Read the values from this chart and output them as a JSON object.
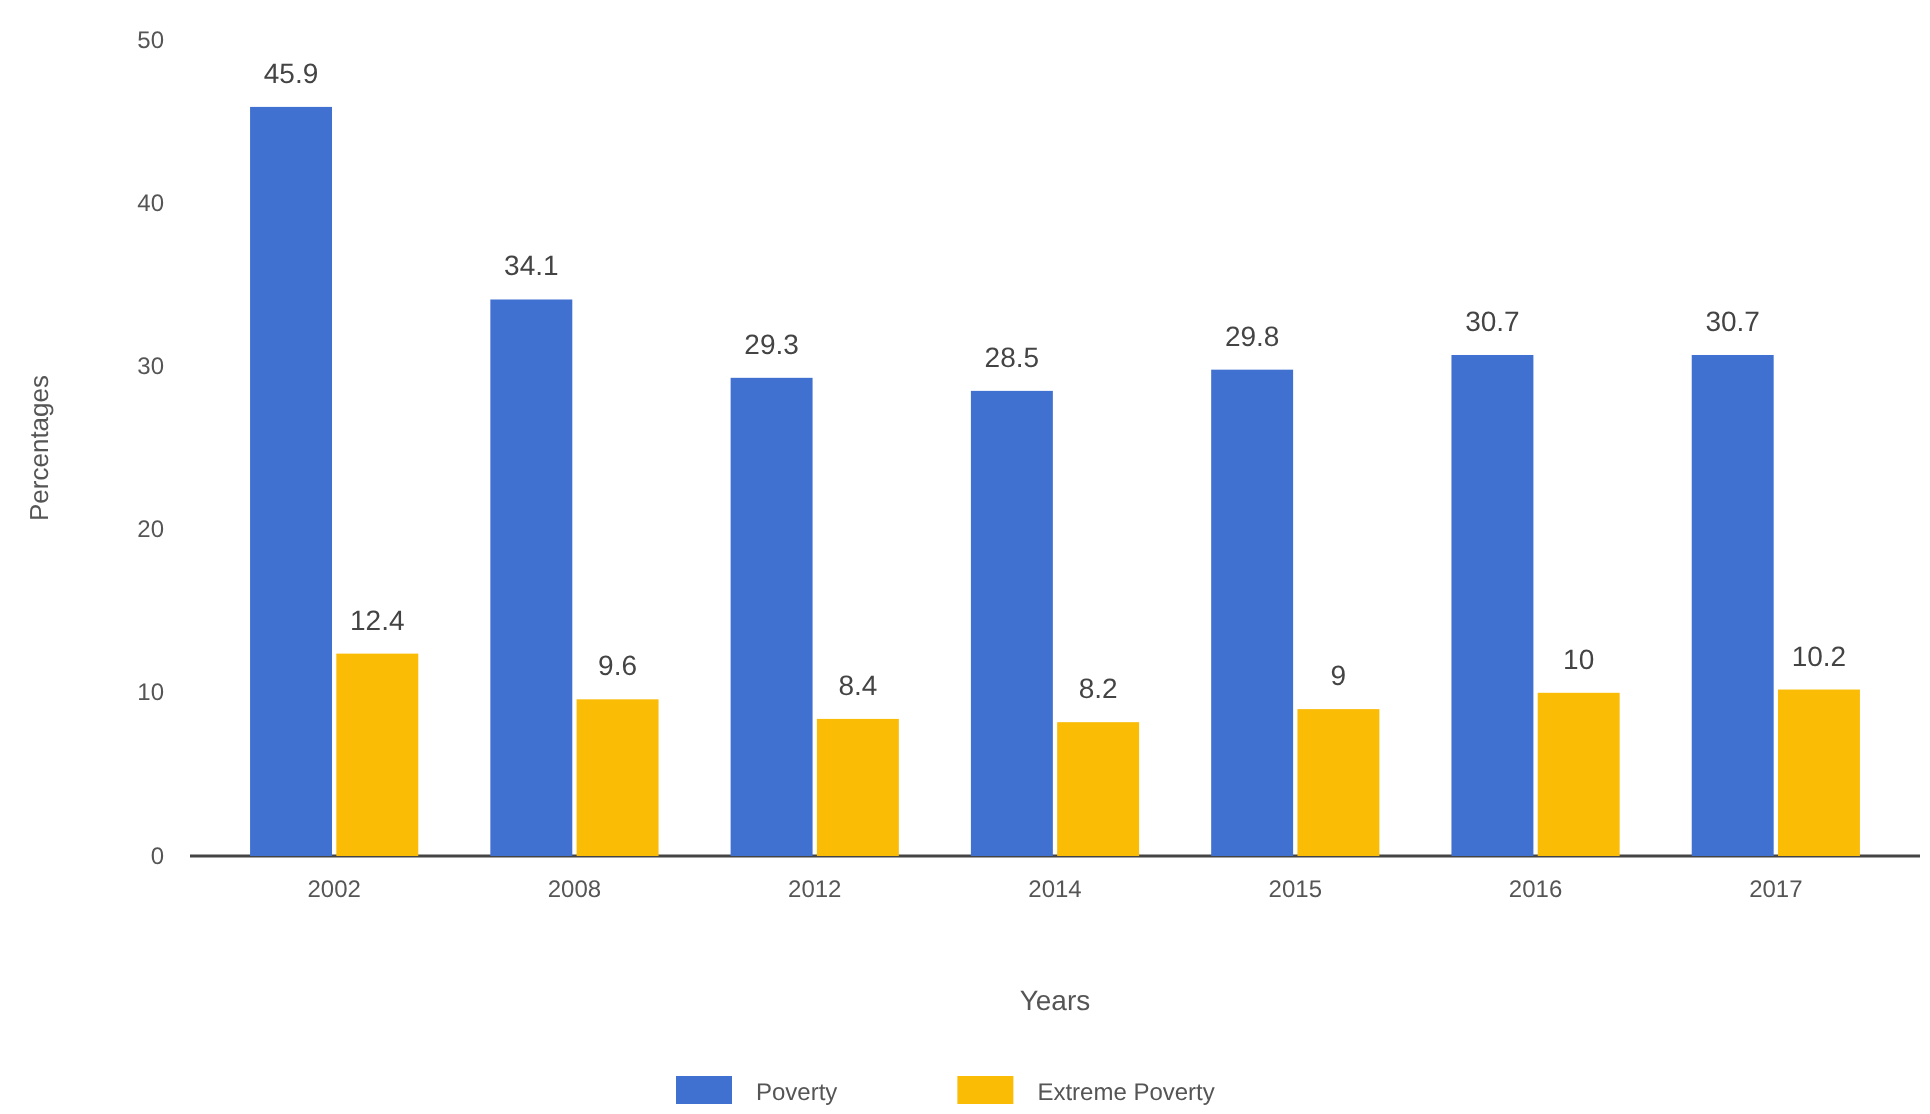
{
  "chart_data": {
    "type": "bar",
    "xlabel": "Years",
    "ylabel": "Percentages",
    "categories": [
      "2002",
      "2008",
      "2012",
      "2014",
      "2015",
      "2016",
      "2017"
    ],
    "series": [
      {
        "name": "Poverty",
        "color": "#4070d0",
        "values": [
          45.9,
          34.1,
          29.3,
          28.5,
          29.8,
          30.7,
          30.7
        ]
      },
      {
        "name": "Extreme Poverty",
        "color": "#fbbc05",
        "values": [
          12.4,
          9.6,
          8.4,
          8.2,
          9,
          10,
          10.2
        ]
      }
    ],
    "ylim": [
      0,
      50
    ],
    "yticks": [
      0,
      10,
      20,
      30,
      40,
      50
    ],
    "grid": false,
    "legend": "bottom",
    "data_labels": true
  }
}
